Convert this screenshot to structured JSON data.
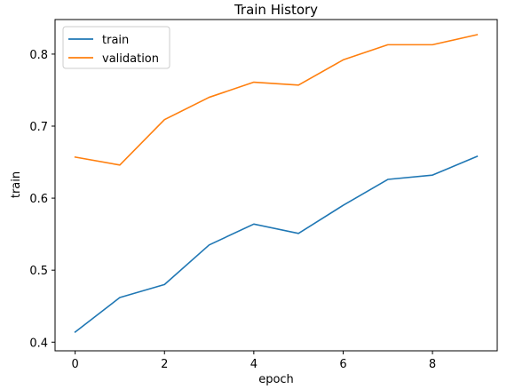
{
  "chart_data": {
    "type": "line",
    "title": "Train History",
    "xlabel": "epoch",
    "ylabel": "train",
    "x": [
      0,
      1,
      2,
      3,
      4,
      5,
      6,
      7,
      8,
      9
    ],
    "xlim": [
      -0.45,
      9.45
    ],
    "ylim": [
      0.388,
      0.848
    ],
    "xticks": [
      0,
      2,
      4,
      6,
      8
    ],
    "yticks": [
      0.4,
      0.5,
      0.6,
      0.7,
      0.8
    ],
    "xtick_labels": [
      "0",
      "2",
      "4",
      "6",
      "8"
    ],
    "ytick_labels": [
      "0.4",
      "0.5",
      "0.6",
      "0.7",
      "0.8"
    ],
    "grid": false,
    "legend_position": "top-left",
    "series": [
      {
        "name": "train",
        "color": "#1f77b4",
        "values": [
          0.414,
          0.462,
          0.48,
          0.535,
          0.564,
          0.551,
          0.59,
          0.626,
          0.632,
          0.658
        ]
      },
      {
        "name": "validation",
        "color": "#ff7f0e",
        "values": [
          0.657,
          0.646,
          0.709,
          0.74,
          0.761,
          0.757,
          0.792,
          0.813,
          0.813,
          0.827
        ]
      }
    ]
  }
}
